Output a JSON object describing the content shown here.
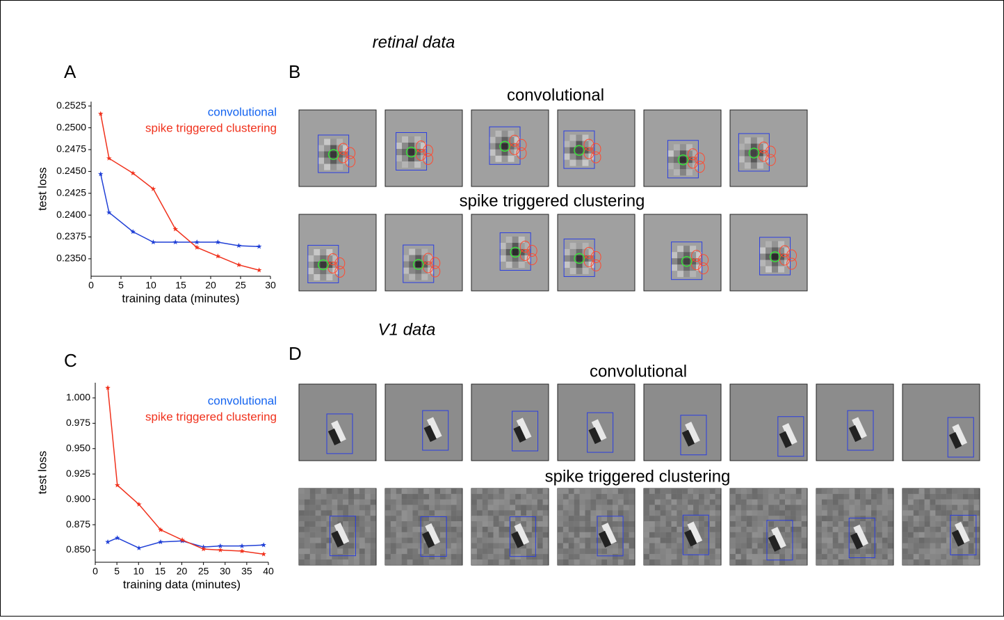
{
  "figure": {
    "sections": [
      {
        "title": "retinal data",
        "panel": "B",
        "rows": [
          "convolutional",
          "spike triggered clustering"
        ]
      },
      {
        "title": "V1 data",
        "panel": "D",
        "rows": [
          "convolutional",
          "spike triggered clustering"
        ]
      }
    ]
  },
  "chart_data": [
    {
      "type": "line",
      "panel": "A",
      "xlabel": "training data (minutes)",
      "ylabel": "test loss",
      "x": [
        1.6,
        3.0,
        7.0,
        10.4,
        14.1,
        17.7,
        21.2,
        24.7,
        28.1
      ],
      "series": [
        {
          "name": "convolutional",
          "color": "#1f3fd6",
          "values": [
            0.2447,
            0.2403,
            0.2381,
            0.2369,
            0.2369,
            0.2369,
            0.2369,
            0.2365,
            0.2364
          ]
        },
        {
          "name": "spike triggered clustering",
          "color": "#f0311c",
          "values": [
            0.2516,
            0.2465,
            0.2448,
            0.243,
            0.2384,
            0.2363,
            0.2353,
            0.2343,
            0.2337
          ]
        }
      ],
      "legend_colors": [
        "#1464f0",
        "#f0311c"
      ],
      "xlim": [
        0,
        30
      ],
      "xticks": [
        0,
        5,
        10,
        15,
        20,
        25,
        30
      ],
      "ylim": [
        0.233,
        0.253
      ],
      "yticks": [
        {
          "value": 0.235,
          "label": "0.2350"
        },
        0.2375,
        {
          "value": 0.24,
          "label": "0.2400"
        },
        0.2425,
        {
          "value": 0.245,
          "label": "0.2450"
        },
        0.2475,
        {
          "value": 0.25,
          "label": "0.2500"
        },
        0.2525
      ]
    },
    {
      "type": "line",
      "panel": "C",
      "xlabel": "training data (minutes)",
      "ylabel": "test loss",
      "x": [
        2.9,
        5.1,
        10.1,
        15.1,
        20.1,
        25.0,
        28.9,
        33.9,
        38.9
      ],
      "series": [
        {
          "name": "convolutional",
          "color": "#1f3fd6",
          "values": [
            0.858,
            0.862,
            0.852,
            0.858,
            0.859,
            0.853,
            0.854,
            0.854,
            0.855
          ]
        },
        {
          "name": "spike triggered clustering",
          "color": "#f0311c",
          "values": [
            1.01,
            0.914,
            0.895,
            0.87,
            0.86,
            0.851,
            0.85,
            0.849,
            0.846
          ]
        }
      ],
      "legend_colors": [
        "#1464f0",
        "#f0311c"
      ],
      "xlim": [
        0,
        40
      ],
      "xticks": [
        0,
        5,
        10,
        15,
        20,
        25,
        30,
        35,
        40
      ],
      "ylim": [
        0.838,
        1.015
      ],
      "yticks": [
        {
          "value": 0.85,
          "label": "0.850"
        },
        0.875,
        {
          "value": 0.9,
          "label": "0.900"
        },
        0.925,
        {
          "value": 0.95,
          "label": "0.950"
        },
        0.975,
        {
          "value": 1.0,
          "label": "1.000"
        }
      ]
    }
  ]
}
